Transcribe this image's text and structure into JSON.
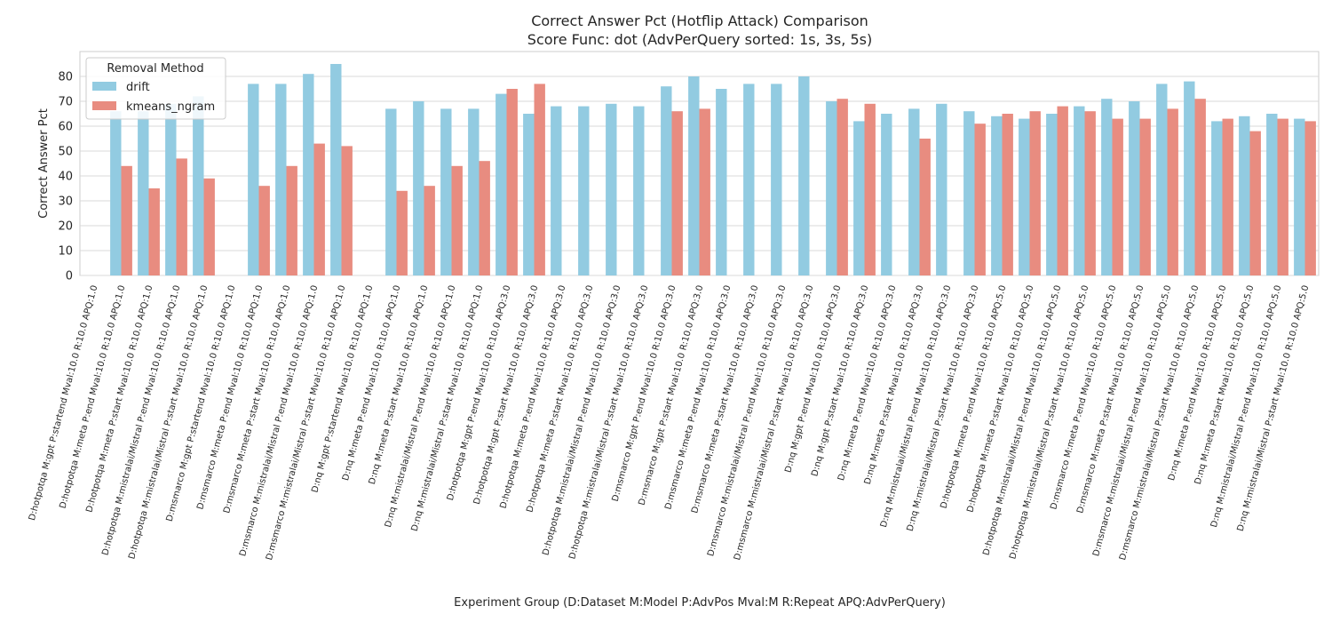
{
  "chart_data": {
    "type": "bar",
    "title": "Correct Answer Pct (Hotflip Attack) Comparison",
    "subtitle": "Score Func: dot (AdvPerQuery sorted: 1s, 3s, 5s)",
    "xlabel": "Experiment Group (D:Dataset M:Model P:AdvPos Mval:M R:Repeat APQ:AdvPerQuery)",
    "ylabel": "Correct Answer Pct",
    "ylim": [
      0,
      90
    ],
    "yticks": [
      0,
      10,
      20,
      30,
      40,
      50,
      60,
      70,
      80
    ],
    "grid": true,
    "legend": {
      "title": "Removal Method",
      "position": "top-left"
    },
    "colors": {
      "drift": "#92cbe1",
      "kmeans_ngram": "#e88c80"
    },
    "categories": [
      "D:hotpotqa M:gpt P:startend Mval:10.0 R:10.0 APQ:1.0",
      "D:hotpotqa M:meta P:end Mval:10.0 R:10.0 APQ:1.0",
      "D:hotpotqa M:meta P:start Mval:10.0 R:10.0 APQ:1.0",
      "D:hotpotqa M:mistralai/Mistral P:end Mval:10.0 R:10.0 APQ:1.0",
      "D:hotpotqa M:mistralai/Mistral P:start Mval:10.0 R:10.0 APQ:1.0",
      "D:msmarco M:gpt P:startend Mval:10.0 R:10.0 APQ:1.0",
      "D:msmarco M:meta P:end Mval:10.0 R:10.0 APQ:1.0",
      "D:msmarco M:meta P:start Mval:10.0 R:10.0 APQ:1.0",
      "D:msmarco M:mistralai/Mistral P:end Mval:10.0 R:10.0 APQ:1.0",
      "D:msmarco M:mistralai/Mistral P:start Mval:10.0 R:10.0 APQ:1.0",
      "D:nq M:gpt P:startend Mval:10.0 R:10.0 APQ:1.0",
      "D:nq M:meta P:end Mval:10.0 R:10.0 APQ:1.0",
      "D:nq M:meta P:start Mval:10.0 R:10.0 APQ:1.0",
      "D:nq M:mistralai/Mistral P:end Mval:10.0 R:10.0 APQ:1.0",
      "D:nq M:mistralai/Mistral P:start Mval:10.0 R:10.0 APQ:1.0",
      "D:hotpotqa M:gpt P:end Mval:10.0 R:10.0 APQ:3.0",
      "D:hotpotqa M:gpt P:start Mval:10.0 R:10.0 APQ:3.0",
      "D:hotpotqa M:meta P:end Mval:10.0 R:10.0 APQ:3.0",
      "D:hotpotqa M:meta P:start Mval:10.0 R:10.0 APQ:3.0",
      "D:hotpotqa M:mistralai/Mistral P:end Mval:10.0 R:10.0 APQ:3.0",
      "D:hotpotqa M:mistralai/Mistral P:start Mval:10.0 R:10.0 APQ:3.0",
      "D:msmarco M:gpt P:end Mval:10.0 R:10.0 APQ:3.0",
      "D:msmarco M:gpt P:start Mval:10.0 R:10.0 APQ:3.0",
      "D:msmarco M:meta P:end Mval:10.0 R:10.0 APQ:3.0",
      "D:msmarco M:meta P:start Mval:10.0 R:10.0 APQ:3.0",
      "D:msmarco M:mistralai/Mistral P:end Mval:10.0 R:10.0 APQ:3.0",
      "D:msmarco M:mistralai/Mistral P:start Mval:10.0 R:10.0 APQ:3.0",
      "D:nq M:gpt P:end Mval:10.0 R:10.0 APQ:3.0",
      "D:nq M:gpt P:start Mval:10.0 R:10.0 APQ:3.0",
      "D:nq M:meta P:end Mval:10.0 R:10.0 APQ:3.0",
      "D:nq M:meta P:start Mval:10.0 R:10.0 APQ:3.0",
      "D:nq M:mistralai/Mistral P:end Mval:10.0 R:10.0 APQ:3.0",
      "D:nq M:mistralai/Mistral P:start Mval:10.0 R:10.0 APQ:3.0",
      "D:hotpotqa M:meta P:end Mval:10.0 R:10.0 APQ:5.0",
      "D:hotpotqa M:meta P:start Mval:10.0 R:10.0 APQ:5.0",
      "D:hotpotqa M:mistralai/Mistral P:end Mval:10.0 R:10.0 APQ:5.0",
      "D:hotpotqa M:mistralai/Mistral P:start Mval:10.0 R:10.0 APQ:5.0",
      "D:msmarco M:meta P:end Mval:10.0 R:10.0 APQ:5.0",
      "D:msmarco M:meta P:start Mval:10.0 R:10.0 APQ:5.0",
      "D:msmarco M:mistralai/Mistral P:end Mval:10.0 R:10.0 APQ:5.0",
      "D:msmarco M:mistralai/Mistral P:start Mval:10.0 R:10.0 APQ:5.0",
      "D:nq M:meta P:end Mval:10.0 R:10.0 APQ:5.0",
      "D:nq M:meta P:start Mval:10.0 R:10.0 APQ:5.0",
      "D:nq M:mistralai/Mistral P:end Mval:10.0 R:10.0 APQ:5.0",
      "D:nq M:mistralai/Mistral P:start Mval:10.0 R:10.0 APQ:5.0"
    ],
    "series": [
      {
        "name": "drift",
        "values": [
          null,
          66,
          66,
          69,
          72,
          null,
          77,
          77,
          81,
          85,
          null,
          67,
          70,
          67,
          67,
          73,
          65,
          68,
          68,
          69,
          68,
          76,
          80,
          75,
          77,
          77,
          80,
          70,
          62,
          65,
          67,
          69,
          66,
          64,
          63,
          65,
          68,
          71,
          70,
          77,
          78,
          62,
          64,
          65,
          63
        ]
      },
      {
        "name": "kmeans_ngram",
        "values": [
          null,
          44,
          35,
          47,
          39,
          null,
          36,
          44,
          53,
          52,
          null,
          34,
          36,
          44,
          46,
          75,
          77,
          null,
          null,
          null,
          null,
          66,
          67,
          null,
          null,
          null,
          null,
          71,
          69,
          null,
          55,
          null,
          61,
          65,
          66,
          68,
          66,
          63,
          63,
          67,
          71,
          63,
          58,
          63,
          62
        ]
      }
    ]
  }
}
